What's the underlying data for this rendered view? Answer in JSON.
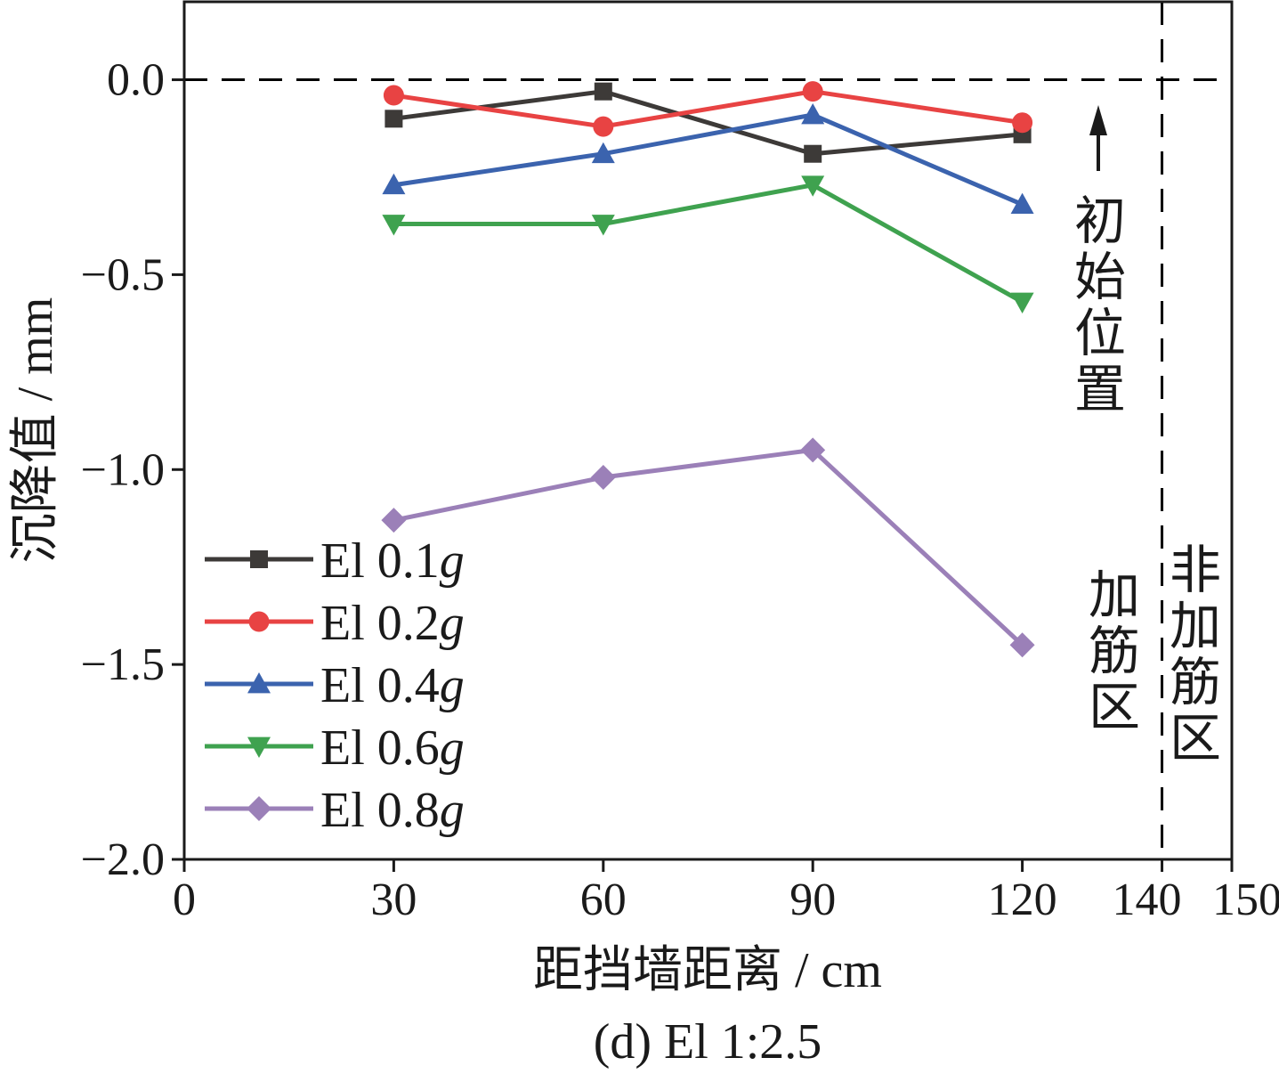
{
  "chart_data": {
    "type": "line",
    "title": "",
    "caption": "(d) El 1:2.5",
    "xlabel": "距挡墙距离 / cm",
    "ylabel": "沉降值 / mm",
    "xlim": [
      0,
      150
    ],
    "ylim": [
      -2.0,
      0.2
    ],
    "x_ticks": [
      0,
      30,
      60,
      90,
      120,
      140,
      150
    ],
    "y_ticks": [
      0.0,
      -0.5,
      -1.0,
      -1.5,
      -2.0
    ],
    "x_tick_labels": [
      "0",
      "30",
      "60",
      "90",
      "120",
      "140",
      "150"
    ],
    "y_tick_labels": [
      "0.0",
      "−0.5",
      "−1.0",
      "−1.5",
      "−2.0"
    ],
    "grid": false,
    "legend_position": "bottom-left",
    "x": [
      30,
      60,
      90,
      120
    ],
    "series": [
      {
        "name": "El 0.1g",
        "prefix": "El 0.1",
        "suffix": "g",
        "color": "#3d3a38",
        "marker": "square",
        "values": [
          -0.1,
          -0.03,
          -0.19,
          -0.14
        ]
      },
      {
        "name": "El 0.2g",
        "prefix": "El 0.2",
        "suffix": "g",
        "color": "#e84343",
        "marker": "circle",
        "values": [
          -0.04,
          -0.12,
          -0.03,
          -0.11
        ]
      },
      {
        "name": "El 0.4g",
        "prefix": "El 0.4",
        "suffix": "g",
        "color": "#3b63ae",
        "marker": "triangle-up",
        "values": [
          -0.27,
          -0.19,
          -0.09,
          -0.32
        ]
      },
      {
        "name": "El 0.6g",
        "prefix": "El 0.6",
        "suffix": "g",
        "color": "#3fa24f",
        "marker": "triangle-down",
        "values": [
          -0.37,
          -0.37,
          -0.27,
          -0.57
        ]
      },
      {
        "name": "El 0.8g",
        "prefix": "El 0.8",
        "suffix": "g",
        "color": "#9b80b8",
        "marker": "diamond",
        "values": [
          -1.13,
          -1.02,
          -0.95,
          -1.45
        ]
      }
    ],
    "reference_lines": [
      {
        "orientation": "horizontal",
        "value": 0.0,
        "style": "dashed",
        "color": "#000000"
      },
      {
        "orientation": "vertical",
        "value": 140,
        "style": "dashed",
        "color": "#000000"
      }
    ],
    "annotations": {
      "initial_position": "初始位置",
      "reinforced_zone": "加筋区",
      "unreinforced_zone": "非加筋区"
    }
  }
}
